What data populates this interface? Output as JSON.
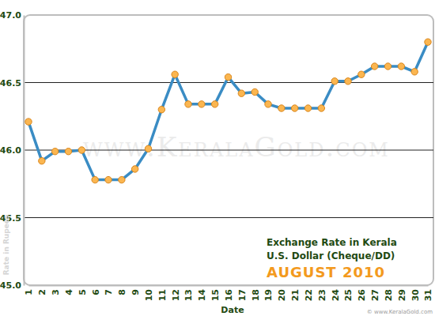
{
  "chart_data": {
    "type": "line",
    "title": "Exchange Rate in Kerala",
    "subtitle": "U.S. Dollar (Cheque/DD)",
    "annotations": [
      "AUGUST 2010",
      "www.KeralaGold.com",
      "© www.KeralaGold.com"
    ],
    "x_label": "Date",
    "y_label": "Rate in Rupees",
    "categories": [
      "1",
      "2",
      "3",
      "4",
      "5",
      "6",
      "7",
      "8",
      "9",
      "10",
      "11",
      "12",
      "13",
      "14",
      "15",
      "16",
      "17",
      "18",
      "19",
      "20",
      "21",
      "22",
      "23",
      "24",
      "25",
      "26",
      "27",
      "28",
      "29",
      "30",
      "31"
    ],
    "values": [
      46.21,
      45.92,
      45.99,
      45.99,
      46.0,
      45.78,
      45.78,
      45.78,
      45.86,
      46.01,
      46.3,
      46.56,
      46.34,
      46.34,
      46.34,
      46.54,
      46.42,
      46.43,
      46.34,
      46.31,
      46.31,
      46.31,
      46.31,
      46.51,
      46.51,
      46.56,
      46.62,
      46.62,
      46.62,
      46.58,
      46.8
    ],
    "color": "#3a8cc4",
    "marker": "circle",
    "ylim": [
      45,
      47
    ],
    "yticks": [
      {
        "value": 45,
        "label": "45.0"
      },
      {
        "value": 45.5,
        "label": "45.5"
      },
      {
        "value": 46,
        "label": "46.0"
      },
      {
        "value": 46.5,
        "label": "46.5"
      },
      {
        "value": 47,
        "label": "47.0"
      }
    ],
    "grid": true
  }
}
